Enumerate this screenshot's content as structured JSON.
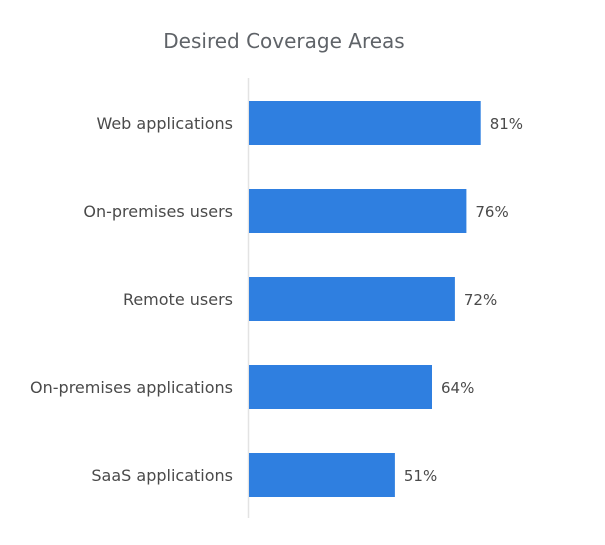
{
  "chart_data": {
    "type": "bar",
    "orientation": "horizontal",
    "title": "Desired Coverage Areas",
    "categories": [
      "Web applications",
      "On-premises users",
      "Remote users",
      "On-premises applications",
      "SaaS applications"
    ],
    "values": [
      81,
      76,
      72,
      64,
      51
    ],
    "value_labels": [
      "81%",
      "76%",
      "72%",
      "64%",
      "51%"
    ],
    "unit": "%",
    "xlim": [
      0,
      100
    ],
    "grid": false,
    "legend": "none",
    "bar_color": "#2f7fe0",
    "axis_color": "#e3e3e3"
  }
}
